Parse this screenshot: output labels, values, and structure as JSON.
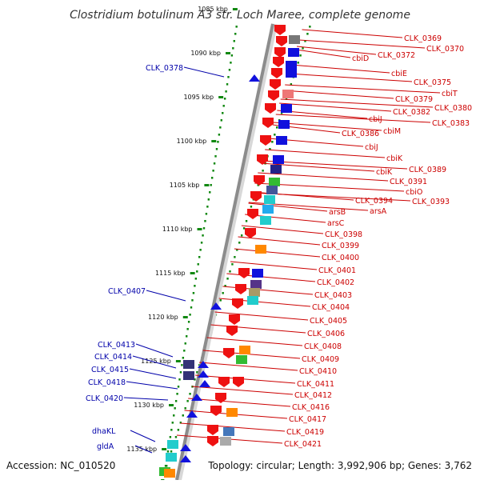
{
  "title": "Clostridium botulinum A3 str. Loch Maree, complete genome",
  "footer": {
    "accession": "Accession: NC_010520",
    "topology": "Topology: circular; Length: 3,992,906 bp; Genes: 3,762"
  },
  "colors": {
    "forward_label": "#cc0000",
    "reverse_label": "#0000aa",
    "forward_gene": "#ee1111",
    "reverse_gene": "#1111dd",
    "tick": "#118811",
    "backbone": "#999999"
  },
  "scale_labels": [
    "1085 kbp",
    "1090 kbp",
    "1095 kbp",
    "1100 kbp",
    "1105 kbp",
    "1110 kbp",
    "1115 kbp",
    "1120 kbp",
    "1125 kbp",
    "1130 kbp",
    "1135 kbp"
  ],
  "forward_labels": [
    "CLK_0369",
    "CLK_0370",
    "CLK_0372",
    "cbiD",
    "cbiE",
    "CLK_0375",
    "cbiT",
    "CLK_0379",
    "CLK_0380",
    "CLK_0382",
    "cbiJ",
    "CLK_0383",
    "cbiM",
    "CLK_0386",
    "cbiJ",
    "cbiK",
    "CLK_0389",
    "cbiK",
    "CLK_0391",
    "cbiO",
    "CLK_0393",
    "CLK_0394",
    "arsA",
    "arsB",
    "arsC",
    "CLK_0398",
    "CLK_0399",
    "CLK_0400",
    "CLK_0401",
    "CLK_0402",
    "CLK_0403",
    "CLK_0404",
    "CLK_0405",
    "CLK_0406",
    "CLK_0408",
    "CLK_0409",
    "CLK_0410",
    "CLK_0411",
    "CLK_0412",
    "CLK_0416",
    "CLK_0417",
    "CLK_0419",
    "CLK_0421"
  ],
  "reverse_labels": [
    "CLK_0378",
    "CLK_0407",
    "CLK_0413",
    "CLK_0414",
    "CLK_0415",
    "CLK_0418",
    "CLK_0420",
    "dhaKL",
    "gldA"
  ]
}
